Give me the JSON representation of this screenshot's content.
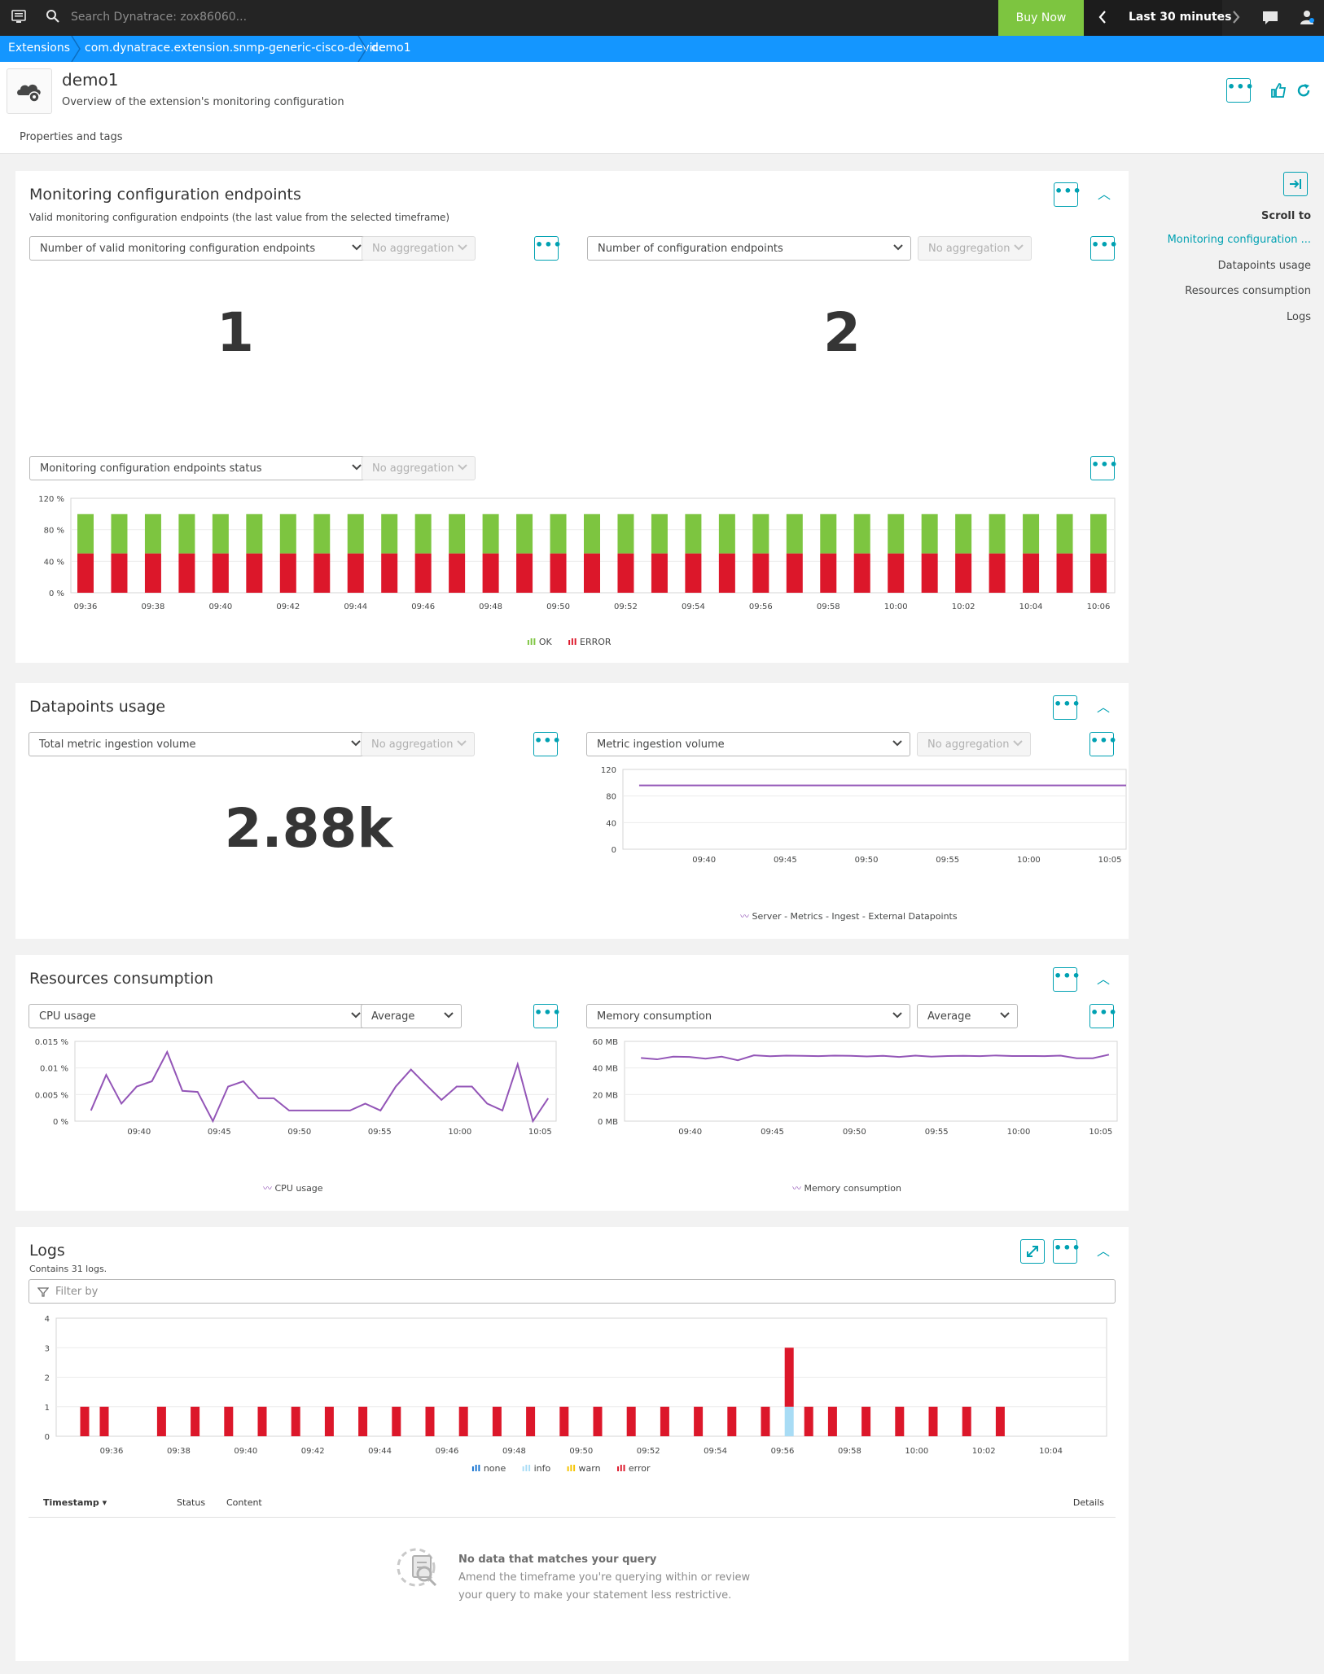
{
  "topbar": {
    "search_placeholder": "Search Dynatrace: zox86060...",
    "buy_now": "Buy Now",
    "timeframe": "Last 30 minutes"
  },
  "breadcrumb": [
    "Extensions",
    "com.dynatrace.extension.snmp-generic-cisco-device",
    "demo1"
  ],
  "header": {
    "title": "demo1",
    "subtitle": "Overview of the extension's monitoring configuration"
  },
  "subnav": {
    "properties": "Properties and tags"
  },
  "scroll_to": {
    "title": "Scroll to",
    "items": [
      "Monitoring configuration ...",
      "Datapoints usage",
      "Resources consumption",
      "Logs"
    ]
  },
  "endpoints": {
    "title": "Monitoring configuration endpoints",
    "subtitle": "Valid monitoring configuration endpoints (the last value from the selected timeframe)",
    "left_select": "Number of valid monitoring configuration endpoints",
    "right_select": "Number of configuration endpoints",
    "aggregation": "No aggregation",
    "left_value": "1",
    "right_value": "2",
    "status_select": "Monitoring configuration endpoints status",
    "legend": [
      "OK",
      "ERROR"
    ]
  },
  "datapoints": {
    "title": "Datapoints usage",
    "left_select": "Total metric ingestion volume",
    "right_select": "Metric ingestion volume",
    "aggregation": "No aggregation",
    "left_value": "2.88k",
    "legend": "Server - Metrics - Ingest - External Datapoints"
  },
  "resources": {
    "title": "Resources consumption",
    "left_select": "CPU usage",
    "left_agg": "Average",
    "right_select": "Memory consumption",
    "right_agg": "Average",
    "left_legend": "CPU usage",
    "right_legend": "Memory consumption"
  },
  "logs": {
    "title": "Logs",
    "subtitle": "Contains 31 logs.",
    "filter_placeholder": "Filter by",
    "legend": [
      "none",
      "info",
      "warn",
      "error"
    ],
    "table_headers": {
      "timestamp": "Timestamp",
      "status": "Status",
      "content": "Content",
      "details": "Details"
    },
    "empty_title": "No data that matches your query",
    "empty_line1": "Amend the timeframe you're querying within or review",
    "empty_line2": "your query to make your statement less restrictive."
  },
  "colors": {
    "ok": "#7dc540",
    "error": "#dc172a",
    "line": "#9355b7",
    "accent": "#00a1b2",
    "info": "#a8dcf5"
  },
  "chart_data": [
    {
      "type": "bar",
      "title": "Monitoring configuration endpoints status",
      "stacked": true,
      "x": [
        "09:36",
        "09:37",
        "09:38",
        "09:39",
        "09:40",
        "09:41",
        "09:42",
        "09:43",
        "09:44",
        "09:45",
        "09:46",
        "09:47",
        "09:48",
        "09:49",
        "09:50",
        "09:51",
        "09:52",
        "09:53",
        "09:54",
        "09:55",
        "09:56",
        "09:57",
        "09:58",
        "09:59",
        "10:00",
        "10:01",
        "10:02",
        "10:03",
        "10:04",
        "10:05",
        "10:06"
      ],
      "xticks": [
        "09:36",
        "09:38",
        "09:40",
        "09:42",
        "09:44",
        "09:46",
        "09:48",
        "09:50",
        "09:52",
        "09:54",
        "09:56",
        "09:58",
        "10:00",
        "10:02",
        "10:04",
        "10:06"
      ],
      "series": [
        {
          "name": "ERROR",
          "values": [
            50,
            50,
            50,
            50,
            50,
            50,
            50,
            50,
            50,
            50,
            50,
            50,
            50,
            50,
            50,
            50,
            50,
            50,
            50,
            50,
            50,
            50,
            50,
            50,
            50,
            50,
            50,
            50,
            50,
            50,
            50
          ]
        },
        {
          "name": "OK",
          "values": [
            50,
            50,
            50,
            50,
            50,
            50,
            50,
            50,
            50,
            50,
            50,
            50,
            50,
            50,
            50,
            50,
            50,
            50,
            50,
            50,
            50,
            50,
            50,
            50,
            50,
            50,
            50,
            50,
            50,
            50,
            50
          ]
        }
      ],
      "ylim": [
        0,
        120
      ],
      "yticks": [
        "0 %",
        "40 %",
        "80 %",
        "120 %"
      ]
    },
    {
      "type": "line",
      "title": "Metric ingestion volume",
      "xticks": [
        "09:40",
        "09:45",
        "09:50",
        "09:55",
        "10:00",
        "10:05"
      ],
      "series": [
        {
          "name": "Server - Metrics - Ingest - External Datapoints",
          "x": [
            "09:36",
            "10:06"
          ],
          "values": [
            96,
            96
          ]
        }
      ],
      "ylim": [
        0,
        120
      ],
      "yticks": [
        "0",
        "40",
        "80",
        "120"
      ]
    },
    {
      "type": "line",
      "title": "CPU usage",
      "unit": "%",
      "xticks": [
        "09:40",
        "09:45",
        "09:50",
        "09:55",
        "10:00",
        "10:05"
      ],
      "series": [
        {
          "name": "CPU usage",
          "values": [
            0.002,
            0.0087,
            0.0033,
            0.0065,
            0.0075,
            0.013,
            0.0057,
            0.0055,
            0.0,
            0.0065,
            0.0075,
            0.0043,
            0.0043,
            0.002,
            0.002,
            0.002,
            0.002,
            0.002,
            0.0033,
            0.002,
            0.0065,
            0.0097,
            0.0068,
            0.004,
            0.0065,
            0.0065,
            0.0033,
            0.002,
            0.0107,
            0.0,
            0.0043
          ]
        }
      ],
      "ylim": [
        0,
        0.015
      ],
      "yticks": [
        "0 %",
        "0.005 %",
        "0.01 %",
        "0.015 %"
      ]
    },
    {
      "type": "line",
      "title": "Memory consumption",
      "unit": "MB",
      "xticks": [
        "09:40",
        "09:45",
        "09:50",
        "09:55",
        "10:00",
        "10:05"
      ],
      "series": [
        {
          "name": "Memory consumption",
          "values": [
            47.5,
            46.5,
            48.5,
            48.3,
            47.0,
            48.5,
            45.8,
            49.5,
            48.8,
            49.3,
            49.1,
            48.9,
            49.3,
            49.1,
            48.7,
            49.1,
            48.3,
            49.3,
            48.5,
            49.0,
            49.1,
            48.9,
            49.4,
            49.0,
            49.0,
            48.9,
            49.3,
            47.3,
            47.3,
            50.0
          ]
        }
      ],
      "ylim": [
        0,
        60
      ],
      "yticks": [
        "0 MB",
        "20 MB",
        "40 MB",
        "60 MB"
      ]
    },
    {
      "type": "bar",
      "title": "Logs",
      "stacked": true,
      "xticks": [
        "09:36",
        "09:38",
        "09:40",
        "09:42",
        "09:44",
        "09:46",
        "09:48",
        "09:50",
        "09:52",
        "09:54",
        "09:56",
        "09:58",
        "10:00",
        "10:02",
        "10:04"
      ],
      "series": [
        {
          "name": "error",
          "x": [
            "09:36",
            "09:36",
            "09:38",
            "09:39",
            "09:40",
            "09:41",
            "09:42",
            "09:43",
            "09:44",
            "09:45",
            "09:46",
            "09:47",
            "09:48",
            "09:49",
            "09:50",
            "09:51",
            "09:52",
            "09:53",
            "09:54",
            "09:55",
            "09:56",
            "09:57",
            "09:57",
            "09:58",
            "09:59",
            "10:00",
            "10:01",
            "10:02",
            "10:03"
          ],
          "values": [
            1,
            1,
            1,
            1,
            1,
            1,
            1,
            1,
            1,
            1,
            1,
            1,
            1,
            1,
            1,
            1,
            1,
            1,
            1,
            1,
            1,
            2,
            1,
            1,
            1,
            1,
            1,
            1,
            1
          ]
        },
        {
          "name": "info",
          "x": [
            "09:57"
          ],
          "values": [
            1
          ]
        }
      ],
      "ylim": [
        0,
        4
      ],
      "yticks": [
        "0",
        "1",
        "2",
        "3",
        "4"
      ]
    }
  ]
}
